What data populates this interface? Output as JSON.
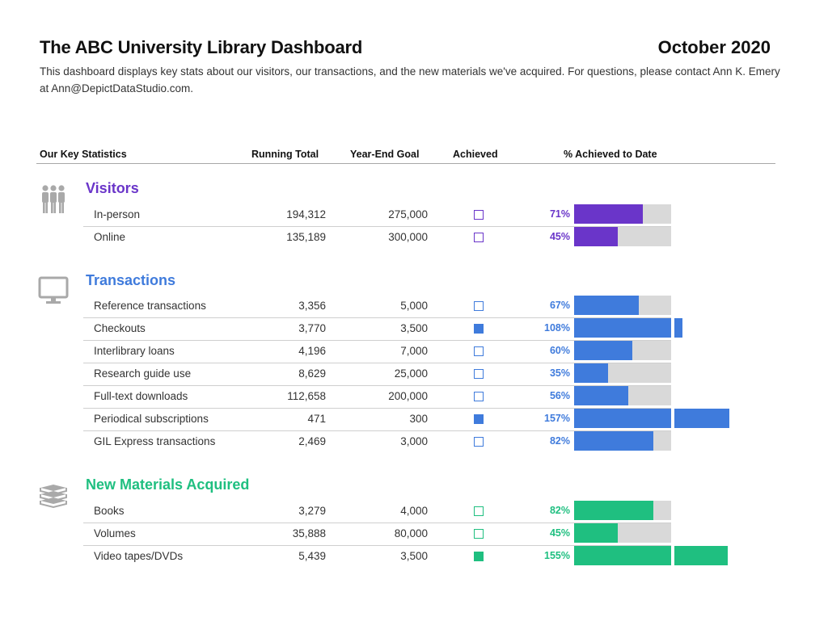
{
  "header": {
    "title": "The ABC University Library Dashboard",
    "date": "October 2020",
    "description": "This dashboard displays key stats about our visitors, our transactions, and the new materials we've acquired. For questions, please contact Ann K. Emery at Ann@DepictDataStudio.com."
  },
  "columns": {
    "stat": "Our Key Statistics",
    "total": "Running Total",
    "goal": "Year-End Goal",
    "achieved": "Achieved",
    "pct": "% Achieved to Date"
  },
  "colors": {
    "visitors": "#6a35c9",
    "transactions": "#3f7bdc",
    "materials": "#1fbf80",
    "track": "#d9d9d9",
    "icon": "#a9a9a9"
  },
  "chart_data": {
    "type": "bar",
    "title": "The ABC University Library Dashboard",
    "xlabel": "% Achieved to Date",
    "xlim": [
      0,
      100
    ],
    "sections": [
      {
        "name": "Visitors",
        "icon": "people-icon",
        "color": "#6a35c9",
        "rows": [
          {
            "label": "In-person",
            "total": "194,312",
            "goal": "275,000",
            "achieved": false,
            "pct": 71,
            "pct_label": "71%"
          },
          {
            "label": "Online",
            "total": "135,189",
            "goal": "300,000",
            "achieved": false,
            "pct": 45,
            "pct_label": "45%"
          }
        ]
      },
      {
        "name": "Transactions",
        "icon": "monitor-icon",
        "color": "#3f7bdc",
        "rows": [
          {
            "label": "Reference transactions",
            "total": "3,356",
            "goal": "5,000",
            "achieved": false,
            "pct": 67,
            "pct_label": "67%"
          },
          {
            "label": "Checkouts",
            "total": "3,770",
            "goal": "3,500",
            "achieved": true,
            "pct": 108,
            "pct_label": "108%"
          },
          {
            "label": "Interlibrary loans",
            "total": "4,196",
            "goal": "7,000",
            "achieved": false,
            "pct": 60,
            "pct_label": "60%"
          },
          {
            "label": "Research guide use",
            "total": "8,629",
            "goal": "25,000",
            "achieved": false,
            "pct": 35,
            "pct_label": "35%"
          },
          {
            "label": "Full-text downloads",
            "total": "112,658",
            "goal": "200,000",
            "achieved": false,
            "pct": 56,
            "pct_label": "56%"
          },
          {
            "label": "Periodical subscriptions",
            "total": "471",
            "goal": "300",
            "achieved": true,
            "pct": 157,
            "pct_label": "157%"
          },
          {
            "label": "GIL Express transactions",
            "total": "2,469",
            "goal": "3,000",
            "achieved": false,
            "pct": 82,
            "pct_label": "82%"
          }
        ]
      },
      {
        "name": "New Materials Acquired",
        "icon": "books-icon",
        "color": "#1fbf80",
        "rows": [
          {
            "label": "Books",
            "total": "3,279",
            "goal": "4,000",
            "achieved": false,
            "pct": 82,
            "pct_label": "82%"
          },
          {
            "label": "Volumes",
            "total": "35,888",
            "goal": "80,000",
            "achieved": false,
            "pct": 45,
            "pct_label": "45%"
          },
          {
            "label": "Video tapes/DVDs",
            "total": "5,439",
            "goal": "3,500",
            "achieved": true,
            "pct": 155,
            "pct_label": "155%"
          }
        ]
      }
    ]
  }
}
